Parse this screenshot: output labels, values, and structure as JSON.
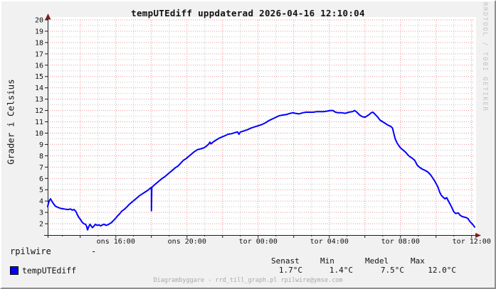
{
  "title": "tempUTEdiff uppdaterad 2026-04-16 12:10:04",
  "watermark": "RRDTOOL / TOBI OETIKER",
  "footer": "Diagrambyggare - rrd_till_graph.pl rpilwire@ymse.com",
  "colors": {
    "line": "#0000ff",
    "major_grid": "#e89494",
    "minor_grid": "#c7c7c7",
    "axis": "#1a1a1a",
    "arrow": "#7c1f1f",
    "canvas_bg": "#f1f1f1",
    "plot_bg": "#ffffff",
    "tick_text": "#111111",
    "footer_text": "#a9a9a9",
    "watermark_text": "#c3c3c3"
  },
  "legend": {
    "source_label": "rpilwire",
    "source_value": "-",
    "series_label": "tempUTEdiff",
    "stats_headers": [
      "Senast",
      "Min",
      "Medel",
      "Max"
    ],
    "stats_values": [
      "1.7°C",
      "1.4°C",
      "7.5°C",
      "12.0°C"
    ]
  },
  "chart_data": {
    "type": "line",
    "title": "tempUTEdiff uppdaterad 2026-04-16 12:10:04",
    "xlabel": "",
    "ylabel": "Grader i Celsius",
    "ylim": [
      1,
      20
    ],
    "y_tick_min": 2,
    "y_tick_max": 20,
    "y_major_step": 1,
    "y_minor_step": 0.5,
    "xlim": [
      12.17,
      36.17
    ],
    "x_major_step": 2,
    "x_minor_step": 1,
    "x_ticks": [
      {
        "t": 16,
        "label": "ons 16:00"
      },
      {
        "t": 20,
        "label": "ons 20:00"
      },
      {
        "t": 24,
        "label": "tor 00:00"
      },
      {
        "t": 28,
        "label": "tor 04:00"
      },
      {
        "t": 32,
        "label": "tor 08:00"
      },
      {
        "t": 36,
        "label": "tor 12:00"
      }
    ],
    "grid": true,
    "legend_position": "bottom",
    "stats": {
      "senast": 1.7,
      "min": 1.4,
      "medel": 7.5,
      "max": 12.0
    },
    "series": [
      {
        "name": "tempUTEdiff",
        "color": "#0000ff",
        "points": [
          [
            12.17,
            3.5
          ],
          [
            12.2,
            3.7
          ],
          [
            12.26,
            4.05
          ],
          [
            12.33,
            4.2
          ],
          [
            12.4,
            4.0
          ],
          [
            12.5,
            3.75
          ],
          [
            12.6,
            3.55
          ],
          [
            12.73,
            3.45
          ],
          [
            12.9,
            3.35
          ],
          [
            13.1,
            3.3
          ],
          [
            13.3,
            3.25
          ],
          [
            13.45,
            3.3
          ],
          [
            13.55,
            3.2
          ],
          [
            13.65,
            3.25
          ],
          [
            13.75,
            3.1
          ],
          [
            13.82,
            2.85
          ],
          [
            13.9,
            2.6
          ],
          [
            14.0,
            2.4
          ],
          [
            14.1,
            2.15
          ],
          [
            14.2,
            2.0
          ],
          [
            14.3,
            1.95
          ],
          [
            14.36,
            1.75
          ],
          [
            14.41,
            1.45
          ],
          [
            14.48,
            1.75
          ],
          [
            14.55,
            1.95
          ],
          [
            14.62,
            1.8
          ],
          [
            14.68,
            1.65
          ],
          [
            14.75,
            1.75
          ],
          [
            14.85,
            1.95
          ],
          [
            14.95,
            1.85
          ],
          [
            15.05,
            1.9
          ],
          [
            15.15,
            1.8
          ],
          [
            15.25,
            1.9
          ],
          [
            15.35,
            1.95
          ],
          [
            15.45,
            1.85
          ],
          [
            15.55,
            1.9
          ],
          [
            15.65,
            2.0
          ],
          [
            15.75,
            2.1
          ],
          [
            15.85,
            2.25
          ],
          [
            16.0,
            2.5
          ],
          [
            16.1,
            2.7
          ],
          [
            16.2,
            2.85
          ],
          [
            16.33,
            3.1
          ],
          [
            16.5,
            3.3
          ],
          [
            16.6,
            3.45
          ],
          [
            16.75,
            3.7
          ],
          [
            16.9,
            3.9
          ],
          [
            17.05,
            4.1
          ],
          [
            17.2,
            4.3
          ],
          [
            17.35,
            4.5
          ],
          [
            17.5,
            4.65
          ],
          [
            17.65,
            4.8
          ],
          [
            17.8,
            4.95
          ],
          [
            17.95,
            5.15
          ],
          [
            18.0,
            5.2
          ],
          [
            18.0,
            3.15
          ],
          [
            18.02,
            5.2
          ],
          [
            18.15,
            5.4
          ],
          [
            18.3,
            5.6
          ],
          [
            18.45,
            5.8
          ],
          [
            18.6,
            6.0
          ],
          [
            18.75,
            6.15
          ],
          [
            18.9,
            6.35
          ],
          [
            19.05,
            6.55
          ],
          [
            19.2,
            6.75
          ],
          [
            19.35,
            6.95
          ],
          [
            19.5,
            7.1
          ],
          [
            19.65,
            7.35
          ],
          [
            19.8,
            7.6
          ],
          [
            19.95,
            7.75
          ],
          [
            20.1,
            7.95
          ],
          [
            20.25,
            8.15
          ],
          [
            20.4,
            8.35
          ],
          [
            20.5,
            8.45
          ],
          [
            20.6,
            8.55
          ],
          [
            20.75,
            8.6
          ],
          [
            20.85,
            8.65
          ],
          [
            20.95,
            8.7
          ],
          [
            21.05,
            8.8
          ],
          [
            21.2,
            9.0
          ],
          [
            21.29,
            9.2
          ],
          [
            21.35,
            9.05
          ],
          [
            21.5,
            9.25
          ],
          [
            21.65,
            9.4
          ],
          [
            21.8,
            9.55
          ],
          [
            21.95,
            9.65
          ],
          [
            22.1,
            9.75
          ],
          [
            22.3,
            9.9
          ],
          [
            22.5,
            9.95
          ],
          [
            22.7,
            10.05
          ],
          [
            22.85,
            10.1
          ],
          [
            22.92,
            9.9
          ],
          [
            23.0,
            10.1
          ],
          [
            23.2,
            10.2
          ],
          [
            23.4,
            10.3
          ],
          [
            23.6,
            10.45
          ],
          [
            23.8,
            10.55
          ],
          [
            24.0,
            10.65
          ],
          [
            24.2,
            10.75
          ],
          [
            24.4,
            10.9
          ],
          [
            24.6,
            11.1
          ],
          [
            24.8,
            11.25
          ],
          [
            25.0,
            11.4
          ],
          [
            25.2,
            11.55
          ],
          [
            25.4,
            11.6
          ],
          [
            25.6,
            11.65
          ],
          [
            25.8,
            11.75
          ],
          [
            25.95,
            11.8
          ],
          [
            26.1,
            11.75
          ],
          [
            26.3,
            11.7
          ],
          [
            26.5,
            11.8
          ],
          [
            26.7,
            11.85
          ],
          [
            26.9,
            11.85
          ],
          [
            27.1,
            11.85
          ],
          [
            27.3,
            11.9
          ],
          [
            27.5,
            11.9
          ],
          [
            27.7,
            11.9
          ],
          [
            27.9,
            11.95
          ],
          [
            28.05,
            12.0
          ],
          [
            28.2,
            12.0
          ],
          [
            28.35,
            11.85
          ],
          [
            28.5,
            11.8
          ],
          [
            28.7,
            11.8
          ],
          [
            28.9,
            11.75
          ],
          [
            29.1,
            11.85
          ],
          [
            29.3,
            11.9
          ],
          [
            29.42,
            12.0
          ],
          [
            29.55,
            11.85
          ],
          [
            29.7,
            11.6
          ],
          [
            29.85,
            11.45
          ],
          [
            30.0,
            11.4
          ],
          [
            30.1,
            11.5
          ],
          [
            30.25,
            11.65
          ],
          [
            30.35,
            11.8
          ],
          [
            30.45,
            11.85
          ],
          [
            30.55,
            11.7
          ],
          [
            30.7,
            11.45
          ],
          [
            30.85,
            11.15
          ],
          [
            31.0,
            11.0
          ],
          [
            31.15,
            10.85
          ],
          [
            31.3,
            10.7
          ],
          [
            31.45,
            10.6
          ],
          [
            31.55,
            10.45
          ],
          [
            31.62,
            10.0
          ],
          [
            31.7,
            9.5
          ],
          [
            31.8,
            9.15
          ],
          [
            31.9,
            8.9
          ],
          [
            32.0,
            8.7
          ],
          [
            32.15,
            8.5
          ],
          [
            32.3,
            8.3
          ],
          [
            32.4,
            8.1
          ],
          [
            32.5,
            7.95
          ],
          [
            32.65,
            7.8
          ],
          [
            32.8,
            7.6
          ],
          [
            32.95,
            7.15
          ],
          [
            33.1,
            6.95
          ],
          [
            33.25,
            6.8
          ],
          [
            33.4,
            6.7
          ],
          [
            33.55,
            6.55
          ],
          [
            33.7,
            6.3
          ],
          [
            33.85,
            5.95
          ],
          [
            33.95,
            5.7
          ],
          [
            34.1,
            5.25
          ],
          [
            34.2,
            4.8
          ],
          [
            34.3,
            4.5
          ],
          [
            34.4,
            4.35
          ],
          [
            34.5,
            4.2
          ],
          [
            34.6,
            4.3
          ],
          [
            34.68,
            4.05
          ],
          [
            34.78,
            3.75
          ],
          [
            34.88,
            3.45
          ],
          [
            35.0,
            3.05
          ],
          [
            35.1,
            2.9
          ],
          [
            35.25,
            2.95
          ],
          [
            35.35,
            2.75
          ],
          [
            35.45,
            2.65
          ],
          [
            35.55,
            2.6
          ],
          [
            35.68,
            2.55
          ],
          [
            35.8,
            2.45
          ],
          [
            35.9,
            2.2
          ],
          [
            36.0,
            2.05
          ],
          [
            36.08,
            1.9
          ],
          [
            36.17,
            1.7
          ]
        ]
      }
    ]
  }
}
